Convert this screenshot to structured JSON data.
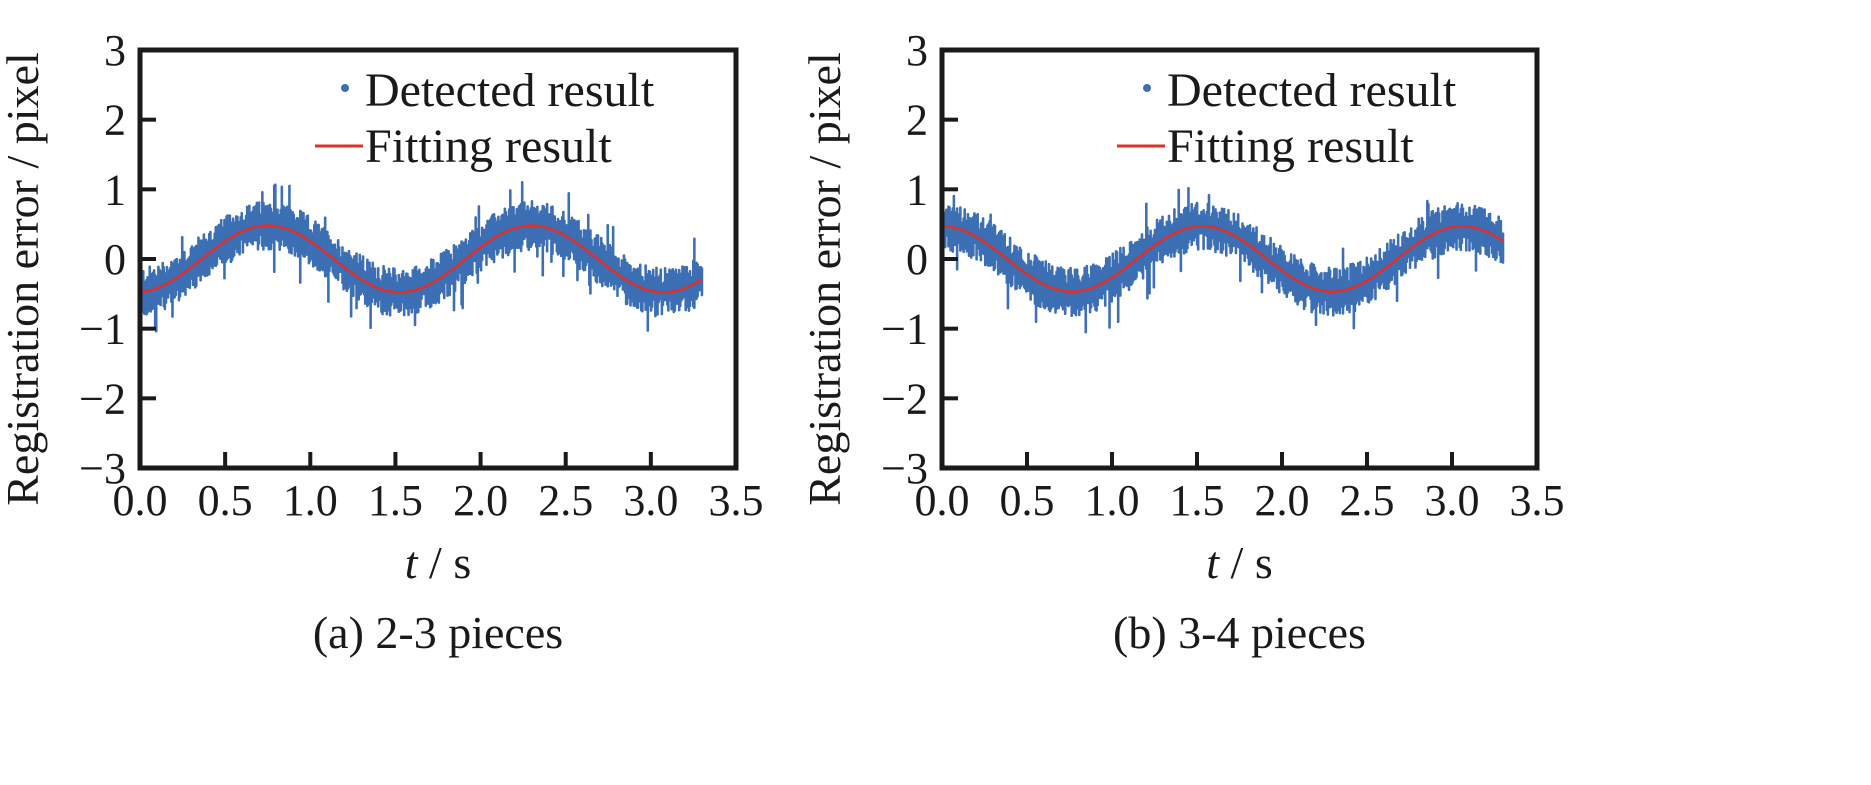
{
  "colors": {
    "detected": "#3c6fb4",
    "fitting": "#e0302a",
    "axis": "#1a1a1a"
  },
  "chart_data": [
    {
      "type": "scatter",
      "caption": "(a) 2-3 pieces",
      "xlabel_var": "t",
      "xlabel_unit": " / s",
      "ylabel": "Registration error / pixel",
      "xlim": [
        0.0,
        3.5
      ],
      "ylim": [
        -3,
        3
      ],
      "xticks": [
        "0.0",
        "0.5",
        "1.0",
        "1.5",
        "2.0",
        "2.5",
        "3.0",
        "3.5"
      ],
      "yticks": [
        "3",
        "2",
        "1",
        "0",
        "−1",
        "−2",
        "−3"
      ],
      "legend": {
        "position": "top-right",
        "entries": [
          "Detected result",
          "Fitting result"
        ]
      },
      "series": [
        {
          "name": "Detected result",
          "kind": "scatter",
          "t_range": [
            0.0,
            3.3
          ],
          "model": "fit + noise",
          "noise_amplitude": 0.35
        },
        {
          "name": "Fitting result",
          "kind": "line",
          "amplitude": 0.48,
          "period": 1.55,
          "peak_times": [
            0.75,
            2.3
          ],
          "trough_times": [
            1.52,
            3.07
          ],
          "t_range": [
            0.0,
            3.3
          ]
        }
      ]
    },
    {
      "type": "scatter",
      "caption": "(b) 3-4 pieces",
      "xlabel_var": "t",
      "xlabel_unit": " / s",
      "ylabel": "Registration error / pixel",
      "xlim": [
        0.0,
        3.5
      ],
      "ylim": [
        -3,
        3
      ],
      "xticks": [
        "0.0",
        "0.5",
        "1.0",
        "1.5",
        "2.0",
        "2.5",
        "3.0",
        "3.5"
      ],
      "yticks": [
        "3",
        "2",
        "1",
        "0",
        "−1",
        "−2",
        "−3"
      ],
      "legend": {
        "position": "top-right",
        "entries": [
          "Detected result",
          "Fitting result"
        ]
      },
      "series": [
        {
          "name": "Detected result",
          "kind": "scatter",
          "t_range": [
            0.0,
            3.3
          ],
          "model": "fit + noise",
          "noise_amplitude": 0.35
        },
        {
          "name": "Fitting result",
          "kind": "line",
          "amplitude": 0.47,
          "period": 1.53,
          "peak_times": [
            0.0,
            1.53,
            3.06
          ],
          "trough_times": [
            0.77,
            2.3
          ],
          "t_range": [
            0.0,
            3.3
          ]
        }
      ]
    }
  ]
}
